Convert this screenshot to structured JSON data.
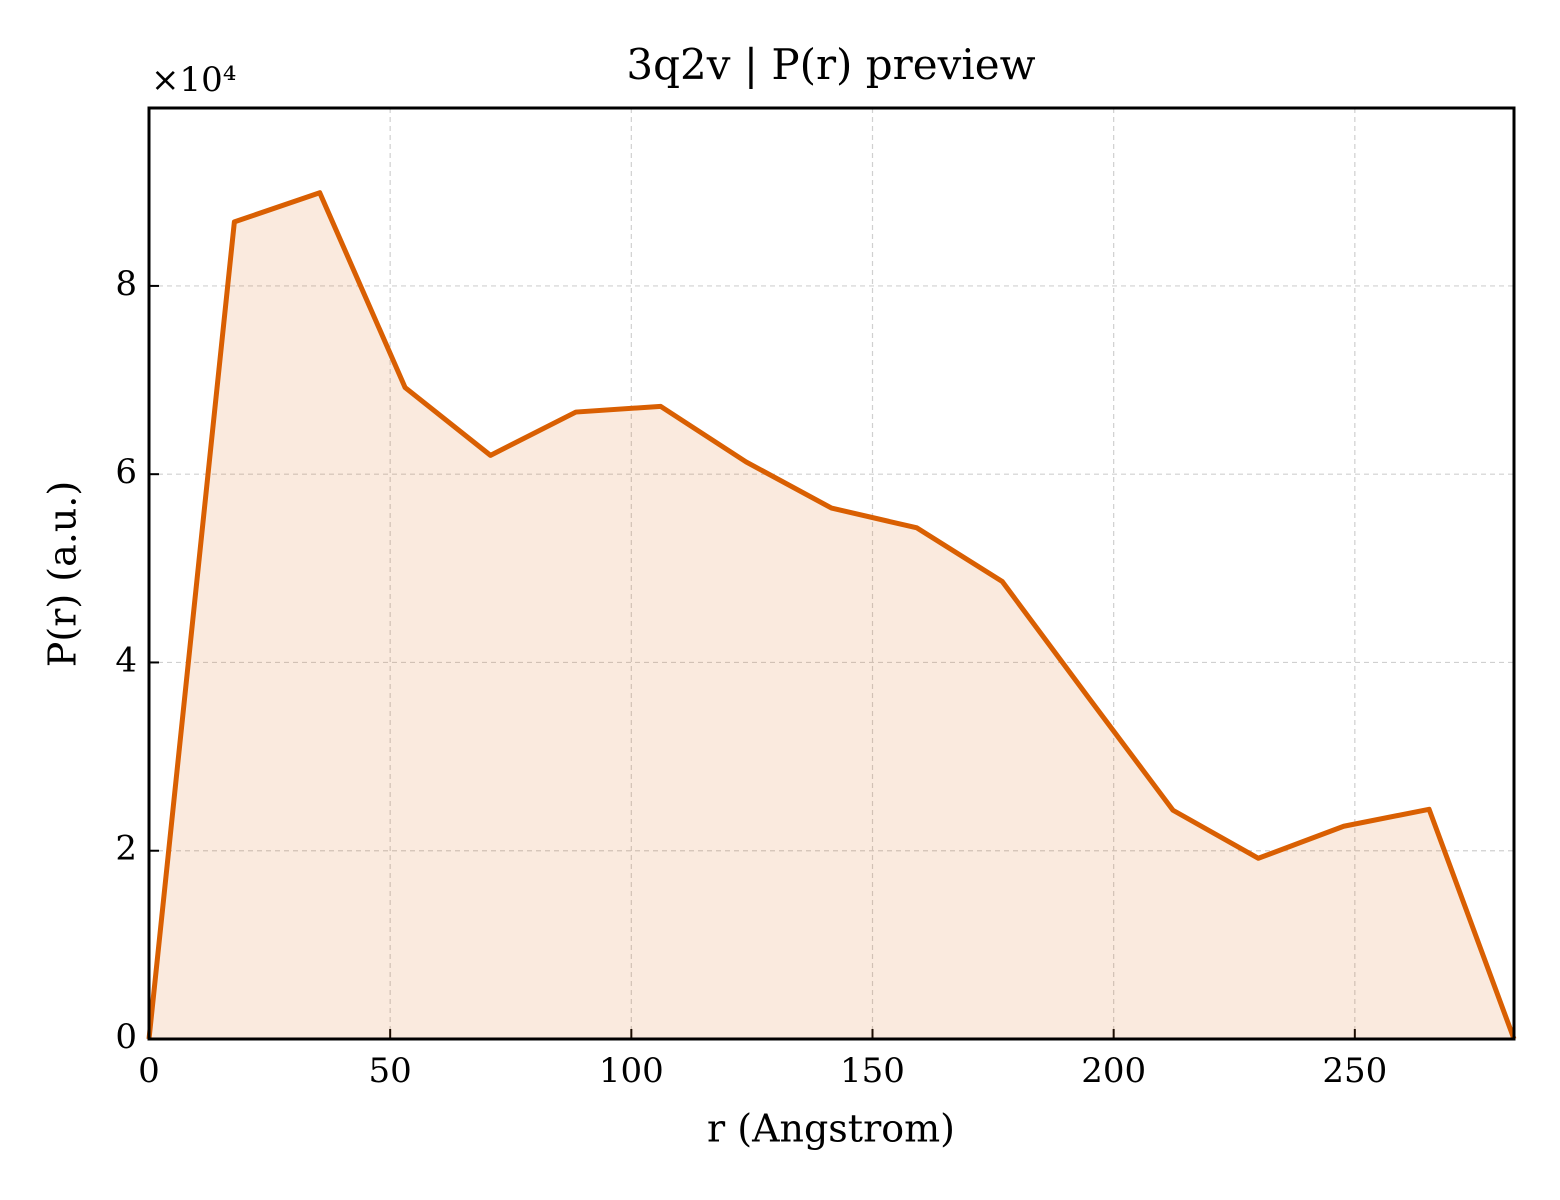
{
  "chart_data": {
    "type": "line",
    "title": "3q2v | P(r) preview",
    "x_label": "r (Angstrom)",
    "y_label": "P(r) (a.u.)",
    "y_offset_text": "×10⁴",
    "x": [
      0,
      17.7,
      35.4,
      53.1,
      70.8,
      88.5,
      106.1,
      123.8,
      141.5,
      159.2,
      176.9,
      194.6,
      212.3,
      230.0,
      247.7,
      265.4,
      283.0
    ],
    "series": [
      {
        "name": "P(r)",
        "color": "#d95f02",
        "fill": true,
        "values": [
          0,
          8.68,
          8.99,
          6.92,
          6.2,
          6.66,
          6.72,
          6.13,
          5.64,
          5.43,
          4.86,
          3.64,
          2.43,
          1.92,
          2.26,
          2.44,
          0
        ]
      }
    ],
    "xlim": [
      0,
      283
    ],
    "ylim": [
      0,
      9.89
    ],
    "xticks": [
      0,
      50,
      100,
      150,
      200,
      250
    ],
    "yticks": [
      0,
      2,
      4,
      6,
      8
    ],
    "grid": true
  }
}
